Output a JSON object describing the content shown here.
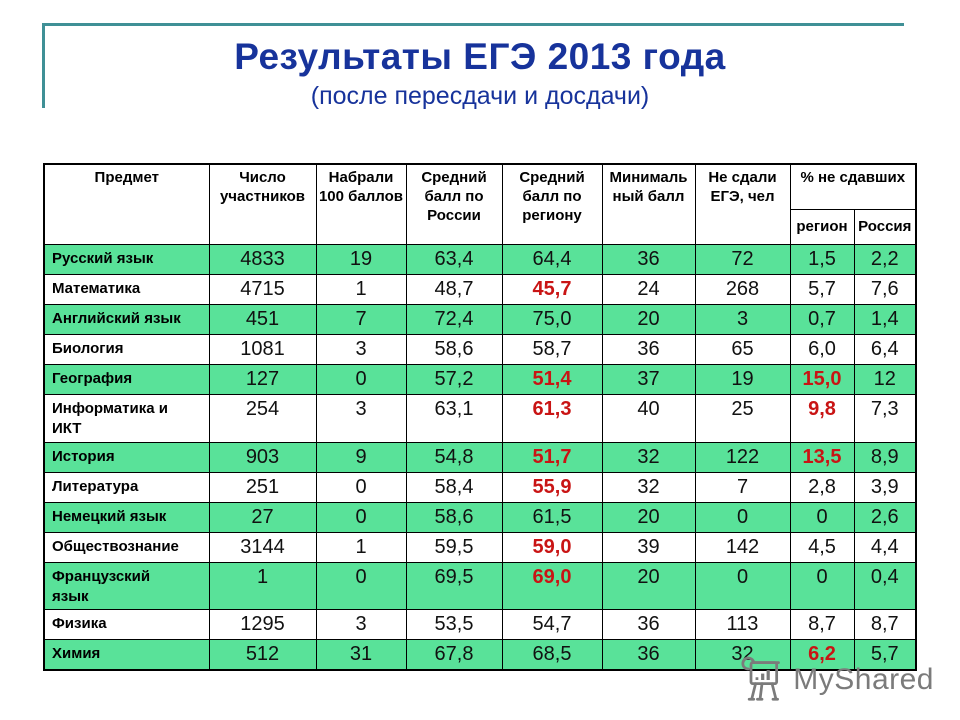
{
  "title": "Результаты ЕГЭ 2013 года",
  "subtitle": "(после пересдачи и досдачи)",
  "colors": {
    "accent_teal": "#3f9096",
    "title_blue": "#17339b",
    "row_green": "#59e299",
    "alert_red": "#c91414",
    "watermark_gray": "#7b7b7b"
  },
  "table": {
    "headers": {
      "subject": "Предмет",
      "participants": "Число участников",
      "hundred_points": "Набрали 100 баллов",
      "avg_russia": "Средний балл по России",
      "avg_region": "Средний балл по региону",
      "min_score": "Минималь ный балл",
      "failed": "Не сдали ЕГЭ, чел",
      "pct_failed": "% не сдавших",
      "pct_region": "регион",
      "pct_russia": "Россия"
    },
    "rows": [
      {
        "subject": "Русский язык",
        "cells": [
          "4833",
          "19",
          "63,4",
          "64,4",
          "36",
          "72",
          "1,5",
          "2,2"
        ],
        "red": [],
        "green": true
      },
      {
        "subject": "Математика",
        "cells": [
          "4715",
          "1",
          "48,7",
          "45,7",
          "24",
          "268",
          "5,7",
          "7,6"
        ],
        "red": [
          3
        ],
        "green": false
      },
      {
        "subject": "Английский язык",
        "cells": [
          "451",
          "7",
          "72,4",
          "75,0",
          "20",
          "3",
          "0,7",
          "1,4"
        ],
        "red": [],
        "green": true
      },
      {
        "subject": "Биология",
        "cells": [
          "1081",
          "3",
          "58,6",
          "58,7",
          "36",
          "65",
          "6,0",
          "6,4"
        ],
        "red": [],
        "green": false
      },
      {
        "subject": "География",
        "cells": [
          "127",
          "0",
          "57,2",
          "51,4",
          "37",
          "19",
          "15,0",
          "12"
        ],
        "red": [
          3,
          6
        ],
        "green": true
      },
      {
        "subject": "Информатика и\nИКТ",
        "cells": [
          "254",
          "3",
          "63,1",
          "61,3",
          "40",
          "25",
          "9,8",
          "7,3"
        ],
        "red": [
          3,
          6
        ],
        "green": false
      },
      {
        "subject": "История",
        "cells": [
          "903",
          "9",
          "54,8",
          "51,7",
          "32",
          "122",
          "13,5",
          "8,9"
        ],
        "red": [
          3,
          6
        ],
        "green": true
      },
      {
        "subject": "Литература",
        "cells": [
          "251",
          "0",
          "58,4",
          "55,9",
          "32",
          "7",
          "2,8",
          "3,9"
        ],
        "red": [
          3
        ],
        "green": false
      },
      {
        "subject": "Немецкий язык",
        "cells": [
          "27",
          "0",
          "58,6",
          "61,5",
          "20",
          "0",
          "0",
          "2,6"
        ],
        "red": [],
        "green": true
      },
      {
        "subject": "Обществознание",
        "cells": [
          "3144",
          "1",
          "59,5",
          "59,0",
          "39",
          "142",
          "4,5",
          "4,4"
        ],
        "red": [
          3
        ],
        "green": false
      },
      {
        "subject": "Французский\nязык",
        "cells": [
          "1",
          "0",
          "69,5",
          "69,0",
          "20",
          "0",
          "0",
          "0,4"
        ],
        "red": [
          3
        ],
        "green": true
      },
      {
        "subject": "Физика",
        "cells": [
          "1295",
          "3",
          "53,5",
          "54,7",
          "36",
          "113",
          "8,7",
          "8,7"
        ],
        "red": [],
        "green": false
      },
      {
        "subject": "Химия",
        "cells": [
          "512",
          "31",
          "67,8",
          "68,5",
          "36",
          "32",
          "6,2",
          "5,7"
        ],
        "red": [
          6
        ],
        "green": true
      }
    ]
  },
  "watermark": {
    "text": "MyShared"
  }
}
